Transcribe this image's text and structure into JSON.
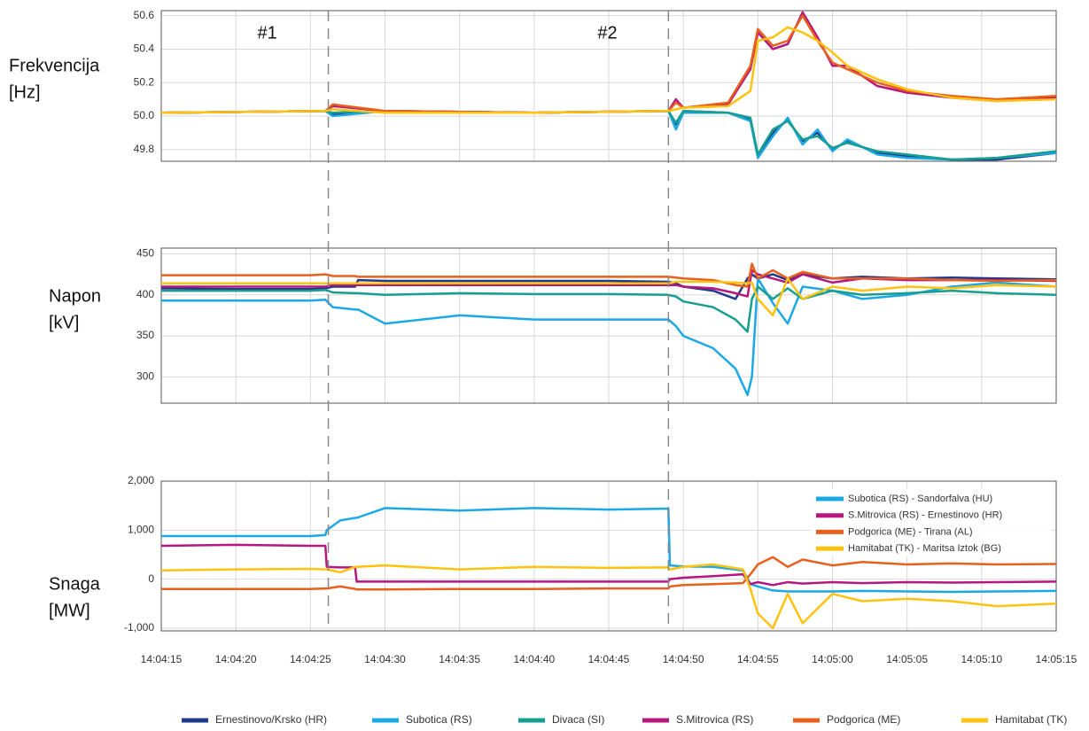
{
  "chart_data": [
    {
      "type": "line",
      "ylabel": [
        "Frekvencija",
        "[Hz]"
      ],
      "events": [
        {
          "label": "#1",
          "x": 50666.2
        },
        {
          "label": "#2",
          "x": 50689
        }
      ],
      "ylim": [
        49.73,
        50.63
      ],
      "yticks": [
        49.8,
        {
          "value": 50,
          "label": "50.0"
        },
        50.2,
        50.4,
        50.6
      ],
      "x": [
        50655,
        50666,
        50666.5,
        50670,
        50680,
        50689,
        50689.5,
        50690,
        50693,
        50694.5,
        50695,
        50696,
        50697,
        50698,
        50699,
        50700,
        50701,
        50703,
        50705,
        50708,
        50711,
        50715
      ],
      "series": [
        {
          "name": "Ernestinovo/Krsko (HR)",
          "color": "#1f3a8a",
          "values": [
            50.02,
            50.03,
            50.01,
            50.03,
            50.02,
            50.03,
            49.95,
            50.03,
            50.02,
            49.98,
            49.76,
            49.9,
            49.98,
            49.85,
            49.9,
            49.8,
            49.85,
            49.78,
            49.76,
            49.74,
            49.74,
            49.78
          ]
        },
        {
          "name": "Subotica (RS)",
          "color": "#1ca8e6",
          "values": [
            50.02,
            50.03,
            50.0,
            50.03,
            50.02,
            50.03,
            49.92,
            50.02,
            50.02,
            49.97,
            49.75,
            49.88,
            49.99,
            49.83,
            49.92,
            49.79,
            49.86,
            49.77,
            49.75,
            49.74,
            49.75,
            49.78
          ]
        },
        {
          "name": "Divaca (SI)",
          "color": "#169e8f",
          "values": [
            50.02,
            50.03,
            50.02,
            50.03,
            50.02,
            50.03,
            49.96,
            50.03,
            50.02,
            49.99,
            49.77,
            49.92,
            49.97,
            49.86,
            49.88,
            49.81,
            49.84,
            49.79,
            49.77,
            49.74,
            49.75,
            49.79
          ]
        },
        {
          "name": "S.Mitrovica (RS)",
          "color": "#b5177f",
          "values": [
            50.02,
            50.03,
            50.06,
            50.03,
            50.02,
            50.03,
            50.1,
            50.05,
            50.07,
            50.28,
            50.5,
            50.4,
            50.43,
            50.62,
            50.47,
            50.3,
            50.3,
            50.18,
            50.14,
            50.11,
            50.09,
            50.11
          ]
        },
        {
          "name": "Podgorica (ME)",
          "color": "#e8601c",
          "values": [
            50.02,
            50.03,
            50.07,
            50.03,
            50.02,
            50.03,
            50.08,
            50.05,
            50.08,
            50.3,
            50.52,
            50.42,
            50.45,
            50.6,
            50.45,
            50.32,
            50.28,
            50.2,
            50.15,
            50.12,
            50.1,
            50.12
          ]
        },
        {
          "name": "Hamitabat (TK)",
          "color": "#ffc20e",
          "values": [
            50.02,
            50.03,
            50.04,
            50.02,
            50.02,
            50.03,
            50.04,
            50.05,
            50.06,
            50.15,
            50.45,
            50.47,
            50.53,
            50.5,
            50.45,
            50.38,
            50.3,
            50.22,
            50.16,
            50.11,
            50.09,
            50.1
          ]
        }
      ]
    },
    {
      "type": "line",
      "ylabel": [
        "Napon",
        "[kV]"
      ],
      "ylim": [
        268,
        457
      ],
      "yticks": [
        300,
        350,
        400,
        450
      ],
      "x": [
        50655,
        50660,
        50665,
        50666,
        50666.5,
        50668,
        50668.2,
        50670,
        50675,
        50680,
        50685,
        50689,
        50689.5,
        50690,
        50692,
        50693.5,
        50694.3,
        50694.6,
        50695,
        50696,
        50697,
        50698,
        50700,
        50702,
        50705,
        50708,
        50711,
        50715
      ],
      "series": [
        {
          "color": "#1f3a8a",
          "values": [
            408,
            407,
            407,
            408,
            410,
            410,
            418,
            417,
            417,
            417,
            417,
            416,
            414,
            410,
            405,
            395,
            420,
            425,
            420,
            425,
            418,
            425,
            420,
            422,
            420,
            421,
            420,
            419
          ]
        },
        {
          "color": "#1ca8e6",
          "values": [
            393,
            393,
            393,
            394,
            385,
            382,
            382,
            365,
            375,
            370,
            370,
            370,
            362,
            350,
            335,
            310,
            278,
            300,
            420,
            390,
            365,
            410,
            405,
            395,
            400,
            410,
            415,
            410
          ]
        },
        {
          "color": "#169e8f",
          "values": [
            405,
            405,
            405,
            406,
            403,
            402,
            402,
            400,
            402,
            401,
            401,
            400,
            398,
            392,
            385,
            370,
            355,
            395,
            410,
            395,
            408,
            395,
            405,
            400,
            402,
            405,
            402,
            400
          ]
        },
        {
          "color": "#b5177f",
          "values": [
            410,
            410,
            410,
            410,
            412,
            412,
            412,
            412,
            412,
            412,
            412,
            412,
            412,
            410,
            408,
            402,
            398,
            430,
            425,
            420,
            415,
            425,
            415,
            420,
            418,
            418,
            418,
            417
          ]
        },
        {
          "color": "#e8601c",
          "values": [
            424,
            424,
            424,
            425,
            423,
            423,
            422,
            422,
            422,
            422,
            422,
            422,
            421,
            420,
            418,
            412,
            410,
            438,
            420,
            430,
            420,
            428,
            420,
            420,
            420,
            418,
            417,
            418
          ]
        },
        {
          "color": "#ffc20e",
          "values": [
            414,
            414,
            414,
            414,
            414,
            414,
            414,
            414,
            414,
            414,
            414,
            414,
            416,
            416,
            416,
            415,
            414,
            415,
            395,
            375,
            420,
            395,
            410,
            405,
            410,
            408,
            412,
            410
          ]
        }
      ]
    },
    {
      "type": "line",
      "ylabel": [
        "Snaga",
        "[MW]"
      ],
      "ylim": [
        -1055,
        2000
      ],
      "yticks": [
        {
          "value": -1000,
          "label": "-1,000"
        },
        0,
        {
          "value": 1000,
          "label": "1,000"
        },
        {
          "value": 2000,
          "label": "2,000"
        }
      ],
      "xlim": [
        50655,
        50715
      ],
      "xticks": [
        {
          "value": 50655,
          "label": "14:04:15"
        },
        {
          "value": 50660,
          "label": "14:04:20"
        },
        {
          "value": 50665,
          "label": "14:04:25"
        },
        {
          "value": 50670,
          "label": "14:04:30"
        },
        {
          "value": 50675,
          "label": "14:04:35"
        },
        {
          "value": 50680,
          "label": "14:04:40"
        },
        {
          "value": 50685,
          "label": "14:04:45"
        },
        {
          "value": 50690,
          "label": "14:04:50"
        },
        {
          "value": 50695,
          "label": "14:04:55"
        },
        {
          "value": 50700,
          "label": "14:05:00"
        },
        {
          "value": 50705,
          "label": "14:05:05"
        },
        {
          "value": 50710,
          "label": "14:05:10"
        },
        {
          "value": 50715,
          "label": "14:05:15"
        }
      ],
      "x": [
        50655,
        50660,
        50665,
        50666,
        50666.1,
        50667,
        50668,
        50668.1,
        50670,
        50675,
        50680,
        50685,
        50689,
        50689.1,
        50690,
        50692,
        50694,
        50694.5,
        50695,
        50696,
        50697,
        50698,
        50700,
        50702,
        50705,
        50708,
        50711,
        50715
      ],
      "series": [
        {
          "name": "Subotica (RS) - Sandorfalva (HU)",
          "color": "#1ca8e6",
          "values": [
            880,
            880,
            880,
            900,
            1000,
            1200,
            1250,
            1250,
            1450,
            1400,
            1450,
            1420,
            1440,
            280,
            260,
            250,
            180,
            -100,
            -150,
            -230,
            -250,
            -250,
            -250,
            -240,
            -250,
            -260,
            -250,
            -240
          ]
        },
        {
          "name": "S.Mitrovica (RS) - Ernestinovo (HR)",
          "color": "#b5177f",
          "values": [
            680,
            700,
            680,
            680,
            250,
            240,
            240,
            -50,
            -50,
            -50,
            -50,
            -50,
            -50,
            0,
            30,
            60,
            100,
            -100,
            -60,
            -120,
            -60,
            -90,
            -60,
            -80,
            -60,
            -70,
            -60,
            -50
          ]
        },
        {
          "name": "Podgorica (ME) - Tirana (AL)",
          "color": "#e8601c",
          "values": [
            -200,
            -200,
            -200,
            -190,
            -190,
            -150,
            -200,
            -210,
            -210,
            -200,
            -200,
            -190,
            -190,
            -150,
            -120,
            -100,
            -80,
            100,
            300,
            450,
            250,
            400,
            280,
            350,
            300,
            320,
            300,
            310
          ]
        },
        {
          "name": "Hamitabat (TK) - Maritsa Iztok (BG)",
          "color": "#ffc20e",
          "values": [
            180,
            200,
            210,
            200,
            200,
            140,
            250,
            250,
            280,
            200,
            250,
            230,
            240,
            200,
            250,
            300,
            200,
            -200,
            -700,
            -1000,
            -300,
            -900,
            -300,
            -450,
            -400,
            -450,
            -550,
            -500
          ]
        }
      ]
    }
  ]
}
